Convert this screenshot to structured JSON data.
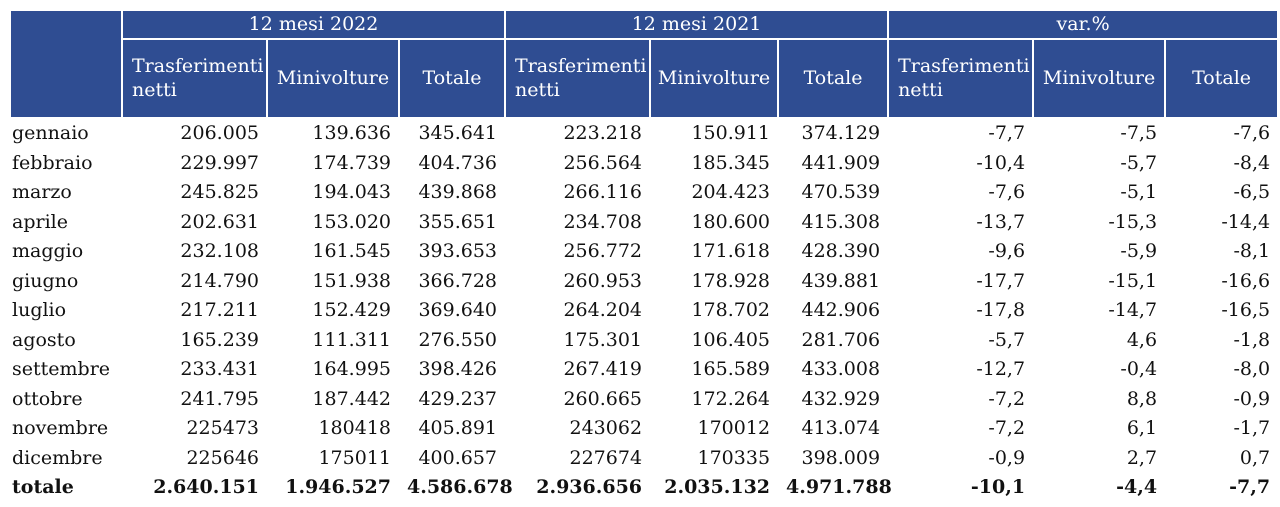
{
  "header": {
    "groups": [
      "12 mesi 2022",
      "12 mesi 2021",
      "var.%"
    ],
    "subcolumns": [
      "Trasferimenti netti",
      "Minivolture",
      "Totale"
    ]
  },
  "rows": [
    {
      "month": "gennaio",
      "v": [
        "206.005",
        "139.636",
        "345.641",
        "223.218",
        "150.911",
        "374.129",
        "-7,7",
        "-7,5",
        "-7,6"
      ]
    },
    {
      "month": "febbraio",
      "v": [
        "229.997",
        "174.739",
        "404.736",
        "256.564",
        "185.345",
        "441.909",
        "-10,4",
        "-5,7",
        "-8,4"
      ]
    },
    {
      "month": "marzo",
      "v": [
        "245.825",
        "194.043",
        "439.868",
        "266.116",
        "204.423",
        "470.539",
        "-7,6",
        "-5,1",
        "-6,5"
      ]
    },
    {
      "month": "aprile",
      "v": [
        "202.631",
        "153.020",
        "355.651",
        "234.708",
        "180.600",
        "415.308",
        "-13,7",
        "-15,3",
        "-14,4"
      ]
    },
    {
      "month": "maggio",
      "v": [
        "232.108",
        "161.545",
        "393.653",
        "256.772",
        "171.618",
        "428.390",
        "-9,6",
        "-5,9",
        "-8,1"
      ]
    },
    {
      "month": "giugno",
      "v": [
        "214.790",
        "151.938",
        "366.728",
        "260.953",
        "178.928",
        "439.881",
        "-17,7",
        "-15,1",
        "-16,6"
      ]
    },
    {
      "month": "luglio",
      "v": [
        "217.211",
        "152.429",
        "369.640",
        "264.204",
        "178.702",
        "442.906",
        "-17,8",
        "-14,7",
        "-16,5"
      ]
    },
    {
      "month": "agosto",
      "v": [
        "165.239",
        "111.311",
        "276.550",
        "175.301",
        "106.405",
        "281.706",
        "-5,7",
        "4,6",
        "-1,8"
      ]
    },
    {
      "month": "settembre",
      "v": [
        "233.431",
        "164.995",
        "398.426",
        "267.419",
        "165.589",
        "433.008",
        "-12,7",
        "-0,4",
        "-8,0"
      ]
    },
    {
      "month": "ottobre",
      "v": [
        "241.795",
        "187.442",
        "429.237",
        "260.665",
        "172.264",
        "432.929",
        "-7,2",
        "8,8",
        "-0,9"
      ]
    },
    {
      "month": "novembre",
      "v": [
        "225473",
        "180418",
        "405.891",
        "243062",
        "170012",
        "413.074",
        "-7,2",
        "6,1",
        "-1,7"
      ]
    },
    {
      "month": "dicembre",
      "v": [
        "225646",
        "175011",
        "400.657",
        "227674",
        "170335",
        "398.009",
        "-0,9",
        "2,7",
        "0,7"
      ]
    }
  ],
  "total": {
    "month": "totale",
    "v": [
      "2.640.151",
      "1.946.527",
      "4.586.678",
      "2.936.656",
      "2.035.132",
      "4.971.788",
      "-10,1",
      "-4,4",
      "-7,7"
    ]
  },
  "colors": {
    "header_bg": "#2f4d92",
    "header_text": "#ffffff"
  }
}
